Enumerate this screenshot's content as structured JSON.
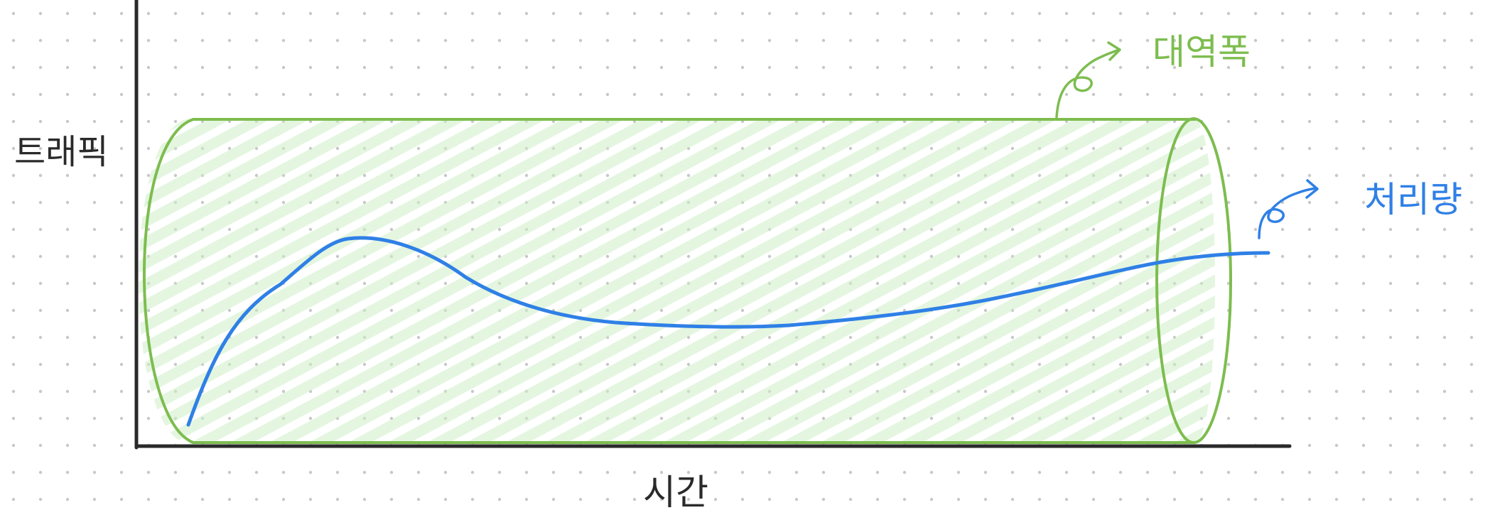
{
  "labels": {
    "y_axis": "트래픽",
    "x_axis": "시간",
    "bandwidth": "대역폭",
    "throughput": "처리량"
  },
  "colors": {
    "bandwidth": "#7dbd4f",
    "bandwidth_fill": "#cdeec7",
    "throughput": "#2f80e6",
    "axis": "#2a2a2a",
    "dots": "#c8c8c8",
    "label_dark": "#2a2a2a"
  }
}
